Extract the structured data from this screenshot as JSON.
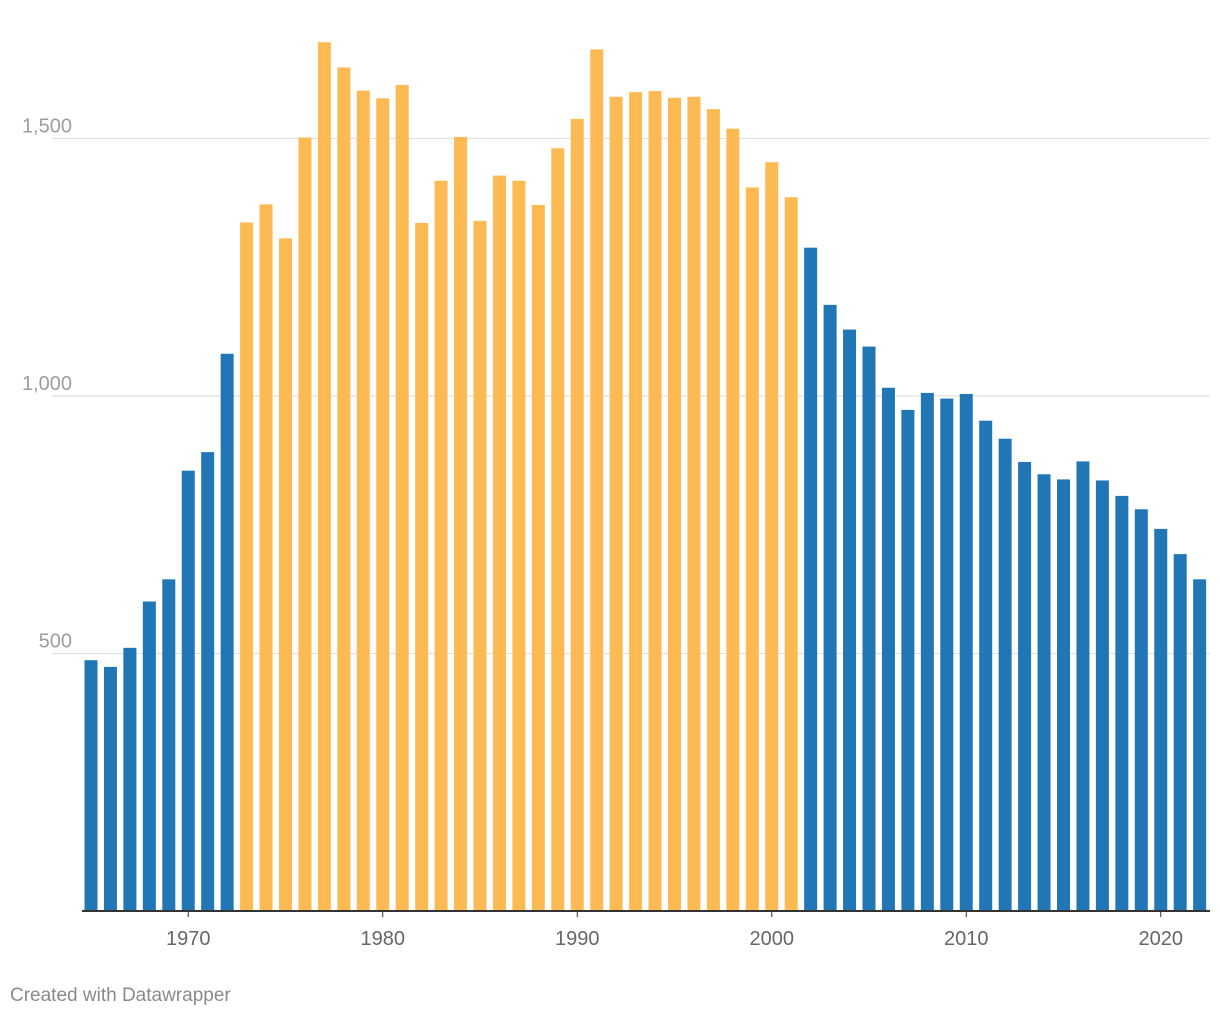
{
  "colors": {
    "blue": "#2176b5",
    "orange": "#fdba53"
  },
  "chart_data": {
    "type": "bar",
    "title": "",
    "xlabel": "",
    "ylabel": "",
    "ylim": [
      0,
      1700
    ],
    "y_ticks": [
      500,
      1000,
      1500
    ],
    "y_tick_labels": [
      "500",
      "1,000",
      "1,500"
    ],
    "x_ticks": [
      1970,
      1980,
      1990,
      2000,
      2010,
      2020
    ],
    "grid": true,
    "legend": "none",
    "highlight_years": [
      1973,
      2001
    ],
    "categories": [
      1965,
      1966,
      1967,
      1968,
      1969,
      1970,
      1971,
      1972,
      1973,
      1974,
      1975,
      1976,
      1977,
      1978,
      1979,
      1980,
      1981,
      1982,
      1983,
      1984,
      1985,
      1986,
      1987,
      1988,
      1989,
      1990,
      1991,
      1992,
      1993,
      1994,
      1995,
      1996,
      1997,
      1998,
      1999,
      2000,
      2001,
      2002,
      2003,
      2004,
      2005,
      2006,
      2007,
      2008,
      2009,
      2010,
      2011,
      2012,
      2013,
      2014,
      2015,
      2016,
      2017,
      2018,
      2019,
      2020,
      2021,
      2022
    ],
    "values": [
      487,
      474,
      511,
      601,
      644,
      855,
      891,
      1082,
      1337,
      1372,
      1306,
      1502,
      1687,
      1638,
      1593,
      1578,
      1604,
      1336,
      1418,
      1503,
      1340,
      1428,
      1418,
      1371,
      1481,
      1538,
      1673,
      1581,
      1590,
      1592,
      1579,
      1581,
      1557,
      1519,
      1405,
      1454,
      1386,
      1288,
      1177,
      1129,
      1096,
      1016,
      973,
      1006,
      995,
      1004,
      952,
      917,
      872,
      848,
      838,
      873,
      836,
      806,
      780,
      742,
      693,
      644
    ]
  },
  "footer": {
    "credit": "Created with Datawrapper"
  }
}
